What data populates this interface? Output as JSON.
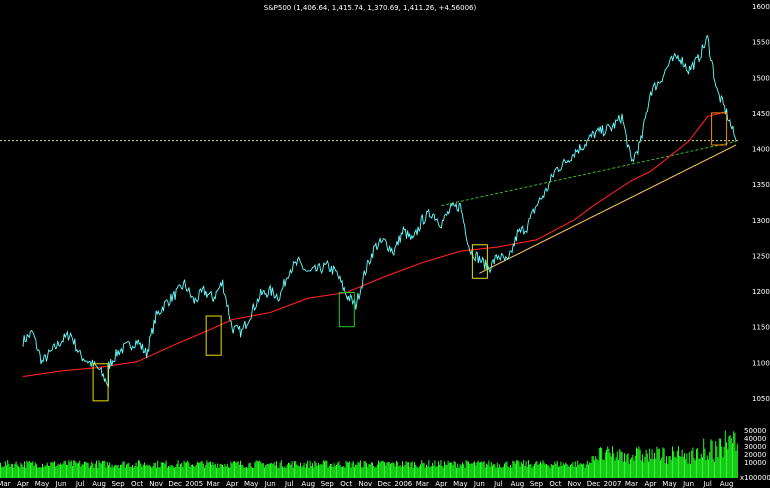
{
  "chart_data": {
    "type": "line",
    "title": "S&P500 (1,406.64, 1,415.74, 1,370.69, 1,411.26, +4.56006)",
    "colors": {
      "background": "#000000",
      "price": "#66ffff",
      "moving_average": "#ff2020",
      "trendline": "#ffd060",
      "dashed_green": "#44cc22",
      "dashed_yellow": "#ffff99",
      "volume": "#22ff22",
      "box_yellow": "#e8e000",
      "box_green": "#22cc22",
      "box_orange": "#ff8800"
    },
    "y_axis": {
      "ticks": [
        1600,
        1550,
        1500,
        1450,
        1400,
        1350,
        1300,
        1250,
        1200,
        1150,
        1100,
        1050
      ],
      "range": [
        1020,
        1610
      ],
      "position": "right"
    },
    "volume_axis": {
      "ticks": [
        "50000",
        "40000",
        "30000",
        "20000",
        "10000"
      ],
      "multiplier": "x100000"
    },
    "x_axis": {
      "labels": [
        "Mar",
        "Apr",
        "May",
        "Jun",
        "Jul",
        "Aug",
        "Sep",
        "Oct",
        "Nov",
        "Dec",
        "2005",
        "Mar",
        "Apr",
        "May",
        "Jun",
        "Jul",
        "Aug",
        "Sep",
        "Oct",
        "Nov",
        "Dec",
        "2006",
        "Mar",
        "Apr",
        "May",
        "Jun",
        "Jul",
        "Aug",
        "Sep",
        "Oct",
        "Nov",
        "Dec",
        "2007",
        "Mar",
        "Apr",
        "May",
        "Jun",
        "Jul",
        "Aug"
      ]
    },
    "price_anchors": [
      [
        "Apr",
        1130
      ],
      [
        "Apr",
        1142
      ],
      [
        "May",
        1100
      ],
      [
        "Jun",
        1130
      ],
      [
        "Jun",
        1140
      ],
      [
        "Jul",
        1110
      ],
      [
        "Aug",
        1090
      ],
      [
        "Aug",
        1068
      ],
      [
        "Aug",
        1095
      ],
      [
        "Sep",
        1115
      ],
      [
        "Oct",
        1130
      ],
      [
        "Oct",
        1112
      ],
      [
        "Nov",
        1165
      ],
      [
        "Nov",
        1183
      ],
      [
        "Dec",
        1195
      ],
      [
        "Dec",
        1210
      ],
      [
        "2005",
        1185
      ],
      [
        "2005",
        1200
      ],
      [
        "Mar",
        1190
      ],
      [
        "Mar",
        1212
      ],
      [
        "Apr",
        1148
      ],
      [
        "Apr",
        1142
      ],
      [
        "May",
        1170
      ],
      [
        "May",
        1195
      ],
      [
        "Jun",
        1200
      ],
      [
        "Jun",
        1192
      ],
      [
        "Jul",
        1230
      ],
      [
        "Jul",
        1240
      ],
      [
        "Aug",
        1225
      ],
      [
        "Sep",
        1235
      ],
      [
        "Sep",
        1225
      ],
      [
        "Oct",
        1195
      ],
      [
        "Oct",
        1180
      ],
      [
        "Nov",
        1228
      ],
      [
        "Nov",
        1262
      ],
      [
        "Dec",
        1270
      ],
      [
        "Dec",
        1255
      ],
      [
        "2006",
        1285
      ],
      [
        "2006",
        1270
      ],
      [
        "Mar",
        1300
      ],
      [
        "Mar",
        1310
      ],
      [
        "Apr",
        1295
      ],
      [
        "Apr",
        1315
      ],
      [
        "May",
        1320
      ],
      [
        "May",
        1258
      ],
      [
        "Jun",
        1245
      ],
      [
        "Jun",
        1232
      ],
      [
        "Jul",
        1250
      ],
      [
        "Jul",
        1240
      ],
      [
        "Aug",
        1280
      ],
      [
        "Aug",
        1290
      ],
      [
        "Sep",
        1320
      ],
      [
        "Sep",
        1340
      ],
      [
        "Oct",
        1370
      ],
      [
        "Oct",
        1380
      ],
      [
        "Nov",
        1395
      ],
      [
        "Nov",
        1405
      ],
      [
        "Dec",
        1420
      ],
      [
        "2007",
        1430
      ],
      [
        "2007",
        1445
      ],
      [
        "Mar",
        1380
      ],
      [
        "Mar",
        1410
      ],
      [
        "Apr",
        1480
      ],
      [
        "Apr",
        1495
      ],
      [
        "May",
        1520
      ],
      [
        "May",
        1530
      ],
      [
        "Jun",
        1510
      ],
      [
        "Jun",
        1525
      ],
      [
        "Jul",
        1555
      ],
      [
        "Jul",
        1480
      ],
      [
        "Aug",
        1450
      ],
      [
        "Aug",
        1411
      ]
    ],
    "moving_average_anchors": [
      [
        "Apr",
        1080
      ],
      [
        "Jun",
        1088
      ],
      [
        "Aug",
        1093
      ],
      [
        "Oct",
        1101
      ],
      [
        "Dec",
        1125
      ],
      [
        "Mar",
        1148
      ],
      [
        "Apr",
        1160
      ],
      [
        "Jun",
        1170
      ],
      [
        "Aug",
        1190
      ],
      [
        "Oct",
        1198
      ],
      [
        "Dec",
        1220
      ],
      [
        "Mar",
        1240
      ],
      [
        "May",
        1256
      ],
      [
        "Jul",
        1262
      ],
      [
        "Sep",
        1272
      ],
      [
        "Nov",
        1300
      ],
      [
        "Dec",
        1320
      ],
      [
        "Mar",
        1355
      ],
      [
        "Apr",
        1368
      ],
      [
        "Jun",
        1410
      ],
      [
        "Jul",
        1445
      ],
      [
        "Aug",
        1452
      ]
    ],
    "trendline": {
      "from": [
        "Jun",
        1225
      ],
      "to": [
        "Aug",
        1405
      ]
    },
    "dashed_green_line": {
      "from": [
        "Apr",
        1320
      ],
      "to": [
        "Aug",
        1410
      ]
    },
    "dashed_yellow_level": 1411,
    "highlight_boxes": [
      {
        "label": "box-aug-2004",
        "color": "yellow",
        "from": "Aug",
        "to": "Aug",
        "y_top": 1098,
        "y_bottom": 1046
      },
      {
        "label": "box-apr-2005",
        "color": "yellow",
        "from": "Apr",
        "to": "Apr",
        "y_top": 1165,
        "y_bottom": 1110
      },
      {
        "label": "box-oct-2005",
        "color": "green",
        "from": "Oct",
        "to": "Oct",
        "y_top": 1198,
        "y_bottom": 1150
      },
      {
        "label": "box-jun-2006",
        "color": "yellow",
        "from": "Jun",
        "to": "Jun",
        "y_top": 1265,
        "y_bottom": 1218
      },
      {
        "label": "box-aug-2007",
        "color": "orange",
        "from": "Aug",
        "to": "Aug",
        "y_top": 1450,
        "y_bottom": 1405
      }
    ]
  }
}
